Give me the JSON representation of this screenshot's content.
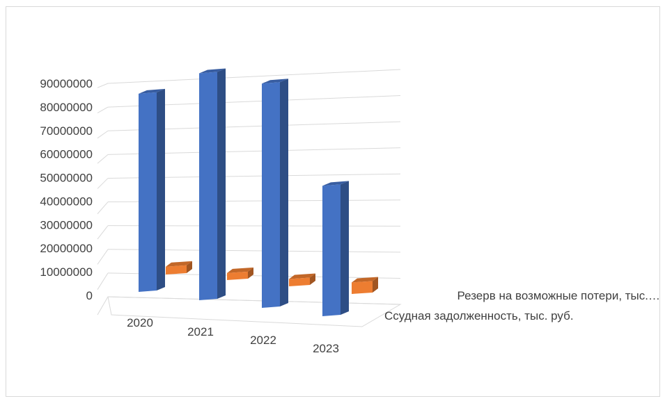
{
  "chart_data": {
    "type": "bar",
    "style": "3d-column",
    "categories": [
      "2020",
      "2021",
      "2022",
      "2023"
    ],
    "series": [
      {
        "name": "Ссудная задолженность, тыс. руб.",
        "label": "Ссудная задолженность, тыс. руб.",
        "color": "#4472c4",
        "values": [
          76000000,
          87000000,
          86000000,
          50000000
        ]
      },
      {
        "name": "Резерв на возможные потери, тыс. руб.",
        "label": "Резерв на возможные потери, тыс.…",
        "color": "#ed7d31",
        "values": [
          3000000,
          2700000,
          2800000,
          4400000
        ]
      }
    ],
    "yticks": [
      "0",
      "10000000",
      "20000000",
      "30000000",
      "40000000",
      "50000000",
      "60000000",
      "70000000",
      "80000000",
      "90000000"
    ],
    "ylim": [
      0,
      90000000
    ],
    "grid": true
  }
}
